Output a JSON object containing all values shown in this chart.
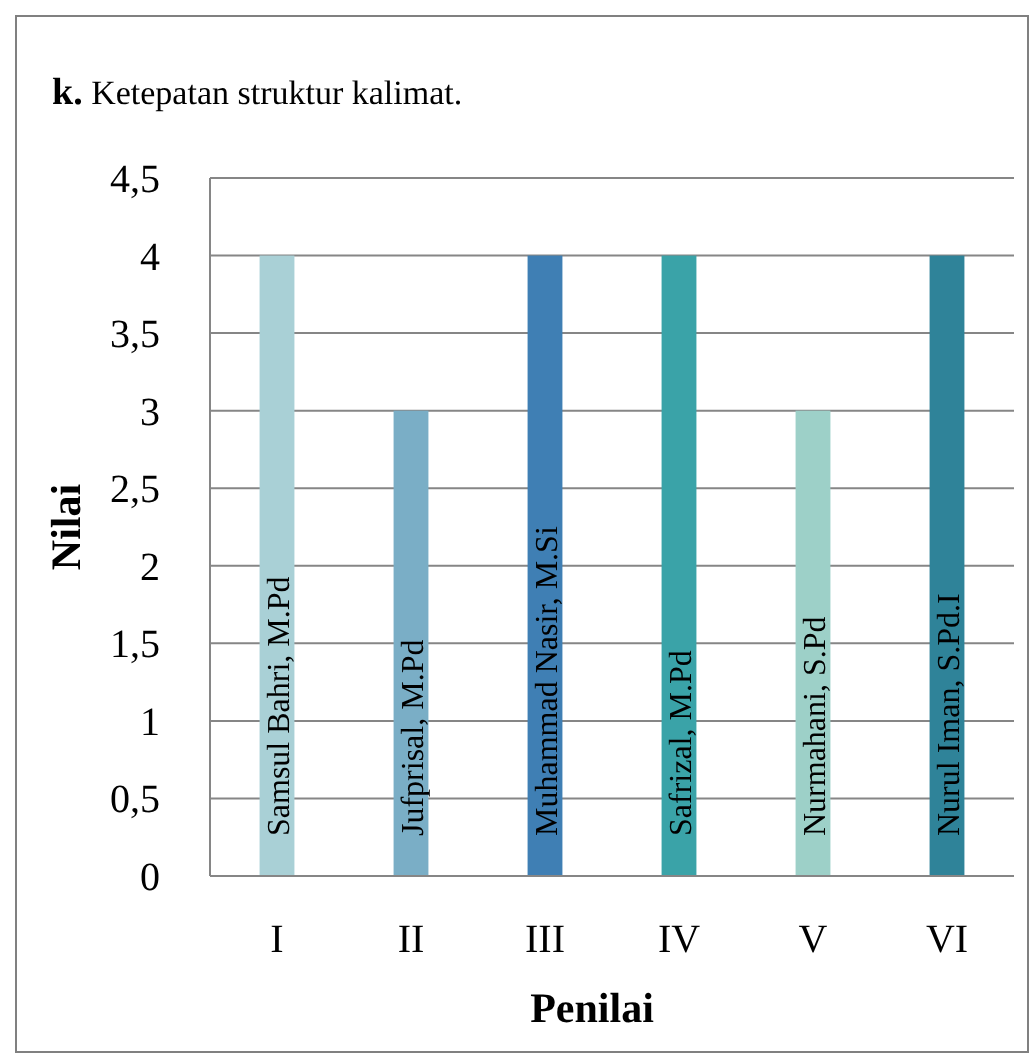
{
  "chart_data": {
    "type": "bar",
    "title": "k. Ketepatan struktur kalimat.",
    "xlabel": "Penilai",
    "ylabel": "Nilai",
    "categories": [
      "I",
      "II",
      "III",
      "IV",
      "V",
      "VI"
    ],
    "values": [
      4,
      3,
      4,
      4,
      3,
      4
    ],
    "colors": [
      "#a9d0d6",
      "#7aaec6",
      "#3f7fb4",
      "#3aa3a8",
      "#9dd0c8",
      "#2f8399"
    ],
    "ylim": [
      0,
      4.5
    ],
    "yticks": [
      0,
      {
        "value": 0.5,
        "label": "0,5"
      },
      1,
      {
        "value": 1.5,
        "label": "1,5"
      },
      2,
      {
        "value": 2.5,
        "label": "2,5"
      },
      3,
      {
        "value": 3.5,
        "label": "3,5"
      },
      4,
      {
        "value": 4.5,
        "label": "4,5"
      }
    ],
    "grid": "y",
    "annotations": [
      "Samsul Bahri, M.Pd",
      "Jufprisal, M.Pd",
      "Muhammad Nasir, M.Si",
      "Safrizal, M.Pd",
      "Nurmahani, S.Pd",
      "Nurul Iman, S.Pd.I"
    ]
  }
}
